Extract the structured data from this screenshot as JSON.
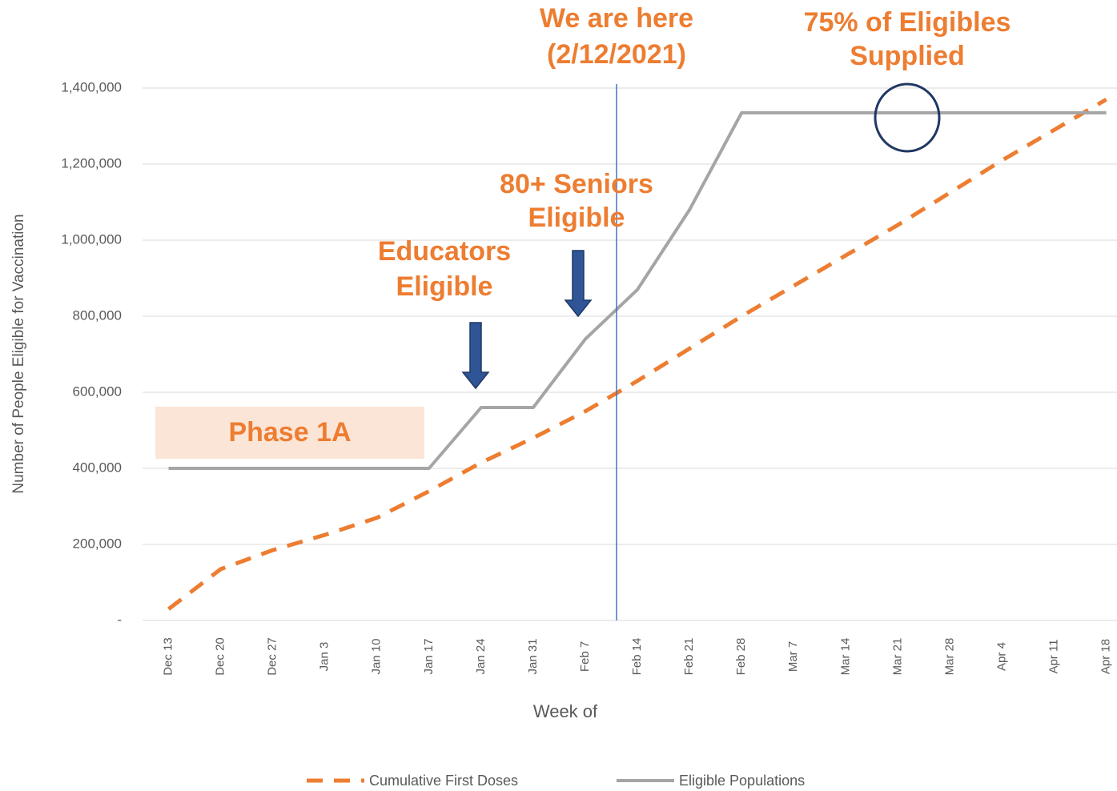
{
  "chart_data": {
    "type": "line",
    "y_label": "Number of People Eligible for Vaccination",
    "x_label": "Week of",
    "categories": [
      "Dec 13",
      "Dec 20",
      "Dec 27",
      "Jan 3",
      "Jan 10",
      "Jan 17",
      "Jan 24",
      "Jan 31",
      "Feb 7",
      "Feb 14",
      "Feb 21",
      "Feb 28",
      "Mar 7",
      "Mar 14",
      "Mar 21",
      "Mar 28",
      "Apr 4",
      "Apr 11",
      "Apr 18"
    ],
    "series": [
      {
        "name": "Cumulative First Doses",
        "color": "#ed7d31",
        "dashed": true,
        "values": [
          30000,
          135000,
          185000,
          225000,
          270000,
          340000,
          415000,
          480000,
          550000,
          630000,
          715000,
          800000,
          880000,
          960000,
          1040000,
          1125000,
          1210000,
          1290000,
          1370000
        ]
      },
      {
        "name": "Eligible Populations",
        "color": "#a5a5a5",
        "dashed": false,
        "values": [
          400000,
          400000,
          400000,
          400000,
          400000,
          400000,
          560000,
          560000,
          740000,
          870000,
          1080000,
          1335000,
          1335000,
          1335000,
          1335000,
          1335000,
          1335000,
          1335000,
          1335000
        ]
      }
    ],
    "ylim": [
      0,
      1400000
    ],
    "yticks": [
      {
        "value": 0,
        "label": "-"
      },
      {
        "value": 200000,
        "label": "200,000"
      },
      {
        "value": 400000,
        "label": "400,000"
      },
      {
        "value": 600000,
        "label": "600,000"
      },
      {
        "value": 800000,
        "label": "800,000"
      },
      {
        "value": 1000000,
        "label": "1,000,000"
      },
      {
        "value": 1200000,
        "label": "1,200,000"
      },
      {
        "value": 1400000,
        "label": "1,400,000"
      }
    ],
    "grid": true,
    "legend": "bottom",
    "annotations": [
      "We are here",
      "(2/12/2021)",
      "75% of Eligibles",
      "Supplied",
      "80+ Seniors",
      "Eligible",
      "Educators",
      "Eligible",
      "Phase 1A"
    ]
  }
}
